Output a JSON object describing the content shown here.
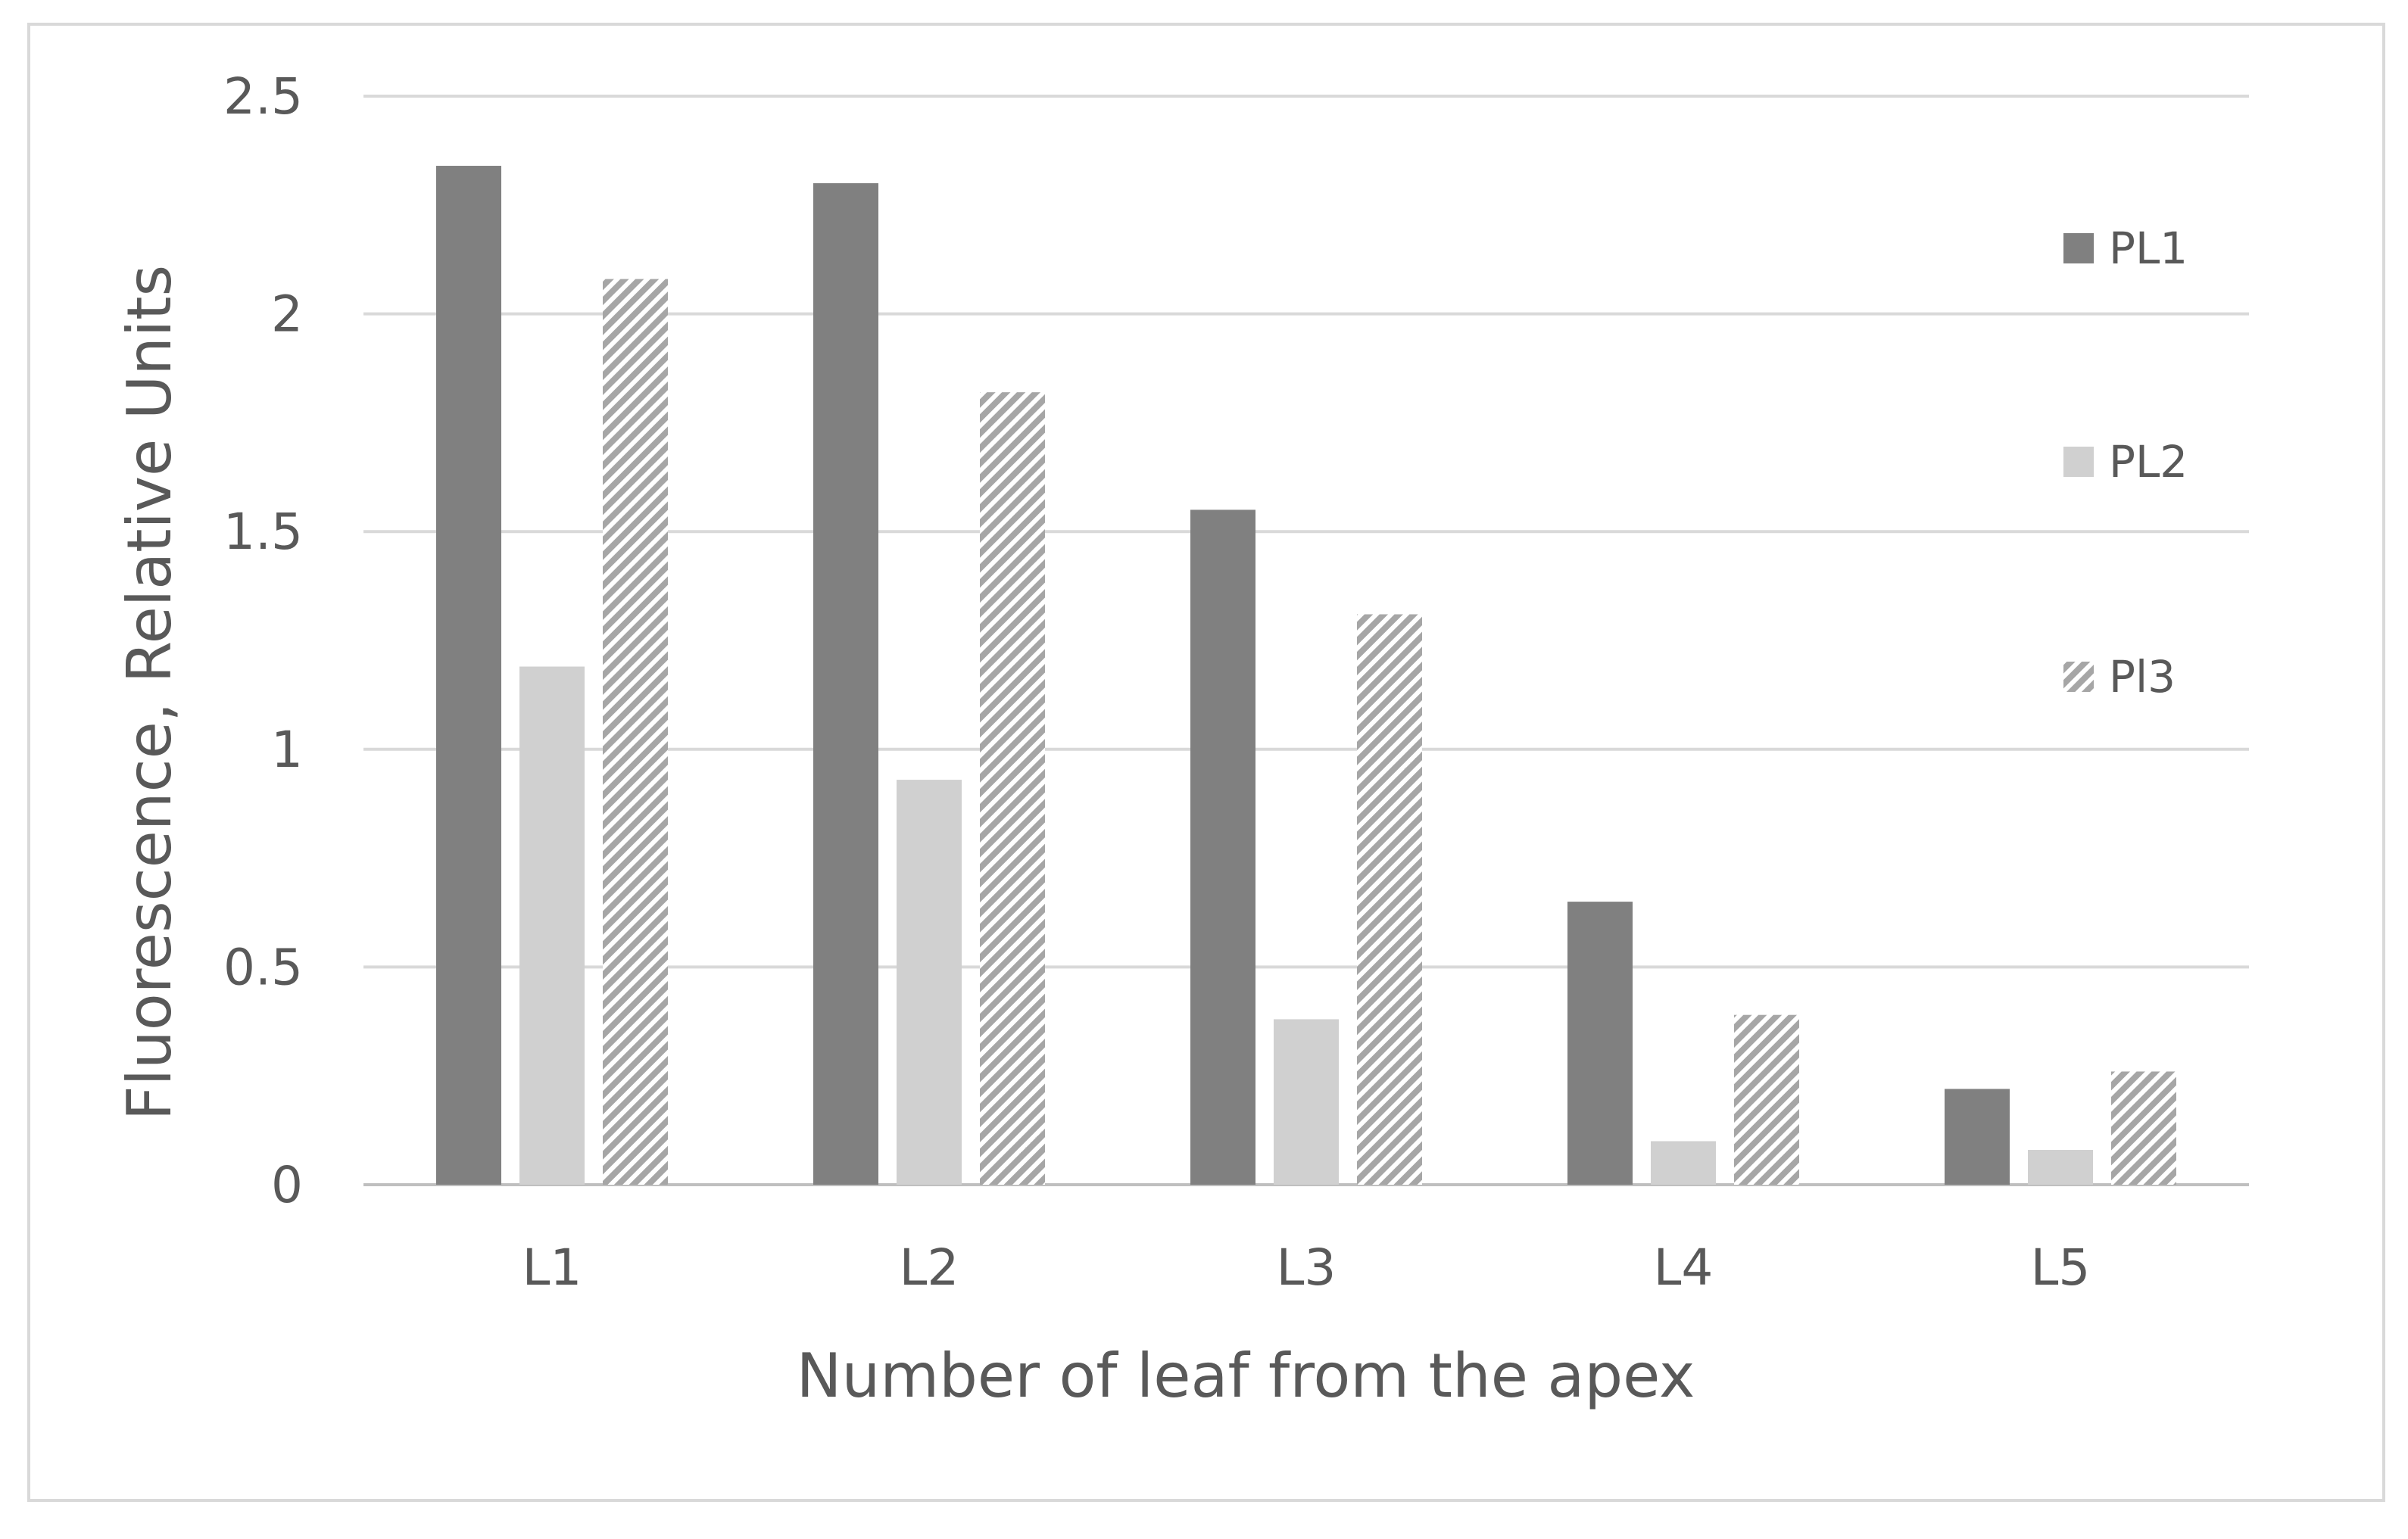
{
  "chart_data": {
    "type": "bar",
    "title": "",
    "xlabel": "Number of leaf from the apex",
    "ylabel": "Fluorescence, Relative Units",
    "categories": [
      "L1",
      "L2",
      "L3",
      "L4",
      "L5"
    ],
    "ylim": [
      0,
      2.5
    ],
    "yticks": [
      "0",
      "0.5",
      "1",
      "1.5",
      "2",
      "2.5"
    ],
    "grid": true,
    "legend_position": "right",
    "series": [
      {
        "name": "PL1",
        "values": [
          2.34,
          2.3,
          1.55,
          0.65,
          0.22
        ],
        "color": "#808080",
        "pattern": "solid"
      },
      {
        "name": "PL2",
        "values": [
          1.19,
          0.93,
          0.38,
          0.1,
          0.08
        ],
        "color": "#d0d0d0",
        "pattern": "solid"
      },
      {
        "name": "Pl3",
        "values": [
          2.08,
          1.82,
          1.31,
          0.39,
          0.26
        ],
        "color": "#a6a6a6",
        "pattern": "diagonal-hatch"
      }
    ]
  }
}
